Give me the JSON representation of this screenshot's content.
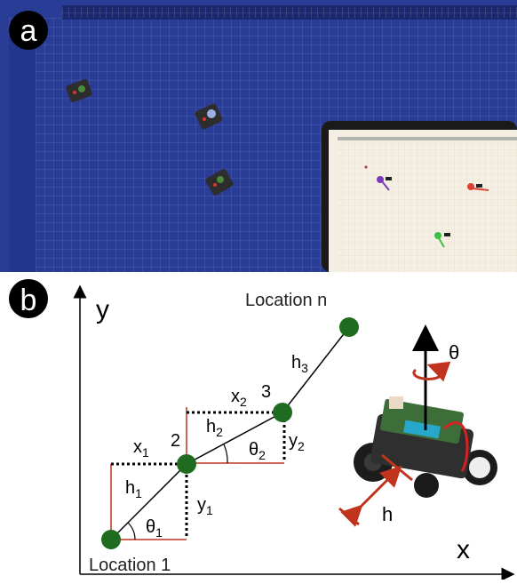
{
  "panel_a": {
    "badge": "a"
  },
  "panel_b": {
    "badge": "b",
    "axis_y": "y",
    "axis_x": "x",
    "location_n": "Location n",
    "location_1": "Location 1",
    "label_2": "2",
    "label_3": "3",
    "x1": "x",
    "x1_sub": "1",
    "x2": "x",
    "x2_sub": "2",
    "h1": "h",
    "h1_sub": "1",
    "h2": "h",
    "h2_sub": "2",
    "h3": "h",
    "h3_sub": "3",
    "y1": "y",
    "y1_sub": "1",
    "y2": "y",
    "y2_sub": "2",
    "theta1": "θ",
    "theta1_sub": "1",
    "theta2": "θ",
    "theta2_sub": "2",
    "theta": "θ",
    "h": "h"
  },
  "colors": {
    "board_blue": "#2b3f9a",
    "node_green": "#1f6b1f",
    "red_line": "#c0341d",
    "badge_black": "#000000"
  }
}
